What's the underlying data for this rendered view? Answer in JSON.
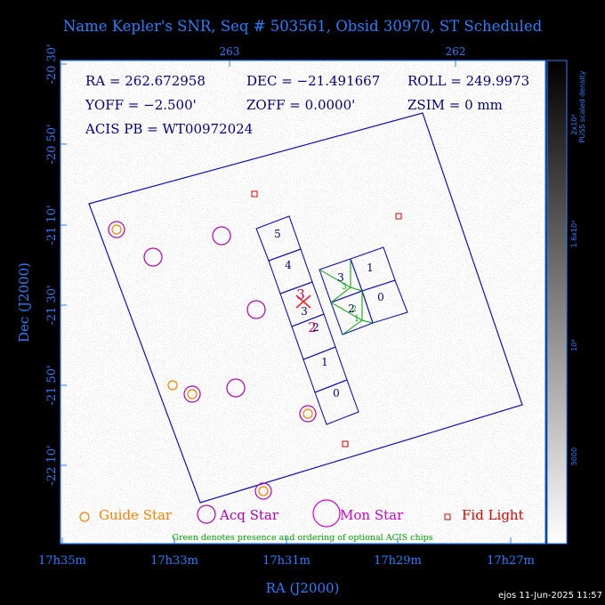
{
  "title": "Name Kepler's SNR, Seq # 503561, Obsid 30970, ST Scheduled",
  "x_axis_label": "RA (J2000)",
  "y_axis_label": "Dec (J2000)",
  "top_ticks": [
    "263",
    "262"
  ],
  "bottom_ticks": [
    "17h35m",
    "17h33m",
    "17h31m",
    "17h29m",
    "17h27m"
  ],
  "left_ticks": [
    "-20 30'",
    "-20 50'",
    "-21 10'",
    "-21 30'",
    "-21 50'",
    "-22 10'"
  ],
  "info": {
    "ra": "RA = 262.672958",
    "dec": "DEC = −21.491667",
    "roll": "ROLL = 249.9973",
    "yoff": "YOFF = −2.500'",
    "zoff": "ZOFF =  0.0000'",
    "zsim": "ZSIM = 0 mm",
    "acis_pb": "ACIS PB = WT00972024"
  },
  "legend": {
    "guide": "Guide Star",
    "acq": "Acq Star",
    "mon": "Mon Star",
    "fid": "Fid Light",
    "note": "Green denotes presence and ordering of optional ACIS chips"
  },
  "colorbar": {
    "label": "PUSS scaled density",
    "ticks": [
      "2x10⁴",
      "1.6x10⁴",
      "10⁴",
      "5000"
    ]
  },
  "chips": {
    "s_array": [
      "5",
      "4",
      "3",
      "2",
      "1",
      "0"
    ],
    "i_array": [
      "1",
      "0",
      "3",
      "2"
    ],
    "optional_order": [
      "3",
      "2",
      "1"
    ],
    "target_labels": [
      "3",
      "2"
    ]
  },
  "footer": "ejos 11-Jun-2025 11:57",
  "colors": {
    "axis": "#2a7fff",
    "frame": "#1010c0",
    "guide": "#ff8000",
    "acq": "#b000b0",
    "mon": "#d000d0",
    "fid": "#e00000",
    "optional": "#00a000",
    "target": "#ff2020"
  }
}
